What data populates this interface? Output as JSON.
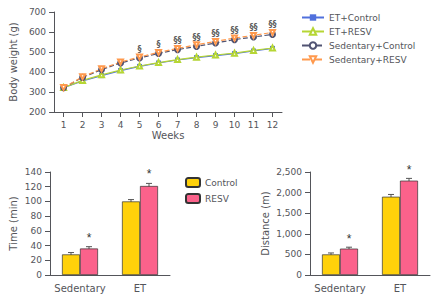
{
  "chart_data": [
    {
      "type": "line",
      "xlabel": "Weeks",
      "ylabel": "Body weight (g)",
      "x": [
        1,
        2,
        3,
        4,
        5,
        6,
        7,
        8,
        9,
        10,
        11,
        12
      ],
      "xlim": [
        0.5,
        12.5
      ],
      "xticks": [
        1,
        2,
        3,
        4,
        5,
        6,
        7,
        8,
        9,
        10,
        11,
        12
      ],
      "ylim": [
        200,
        700
      ],
      "yticks": [
        200,
        300,
        400,
        500,
        600,
        700
      ],
      "grid": false,
      "legend": "right",
      "series": [
        {
          "name": "ET+Control",
          "values": [
            322,
            355,
            382,
            407,
            428,
            445,
            460,
            472,
            482,
            492,
            505,
            518
          ],
          "marker": "square",
          "line_style": "solid"
        },
        {
          "name": "ET+RESV",
          "values": [
            322,
            358,
            386,
            410,
            430,
            447,
            462,
            474,
            485,
            494,
            508,
            520
          ],
          "marker": "triangle",
          "line_style": "solid"
        },
        {
          "name": "Sedentary+Control",
          "values": [
            322,
            373,
            412,
            445,
            470,
            493,
            512,
            528,
            545,
            562,
            575,
            588
          ],
          "marker": "circle",
          "line_style": "dashed"
        },
        {
          "name": "Sedentary+RESV",
          "values": [
            322,
            376,
            416,
            450,
            475,
            498,
            518,
            536,
            553,
            570,
            583,
            598
          ],
          "marker": "triangle-down",
          "line_style": "dashed"
        }
      ],
      "annotations": [
        {
          "text": "§",
          "x": 5,
          "y": 493
        },
        {
          "text": "§",
          "x": 6,
          "y": 516
        },
        {
          "text": "§§",
          "x": 7,
          "y": 536
        },
        {
          "text": "§§",
          "x": 8,
          "y": 554
        },
        {
          "text": "§§",
          "x": 9,
          "y": 571
        },
        {
          "text": "§§",
          "x": 10,
          "y": 588
        },
        {
          "text": "§§",
          "x": 11,
          "y": 601
        },
        {
          "text": "§§",
          "x": 12,
          "y": 616
        }
      ]
    },
    {
      "type": "bar",
      "ylabel": "Time (min)",
      "categories": [
        "Sedentary",
        "ET"
      ],
      "ylim": [
        0,
        140
      ],
      "yticks": [
        0,
        20,
        40,
        60,
        80,
        100,
        120,
        140
      ],
      "grid": false,
      "legend": "right",
      "series": [
        {
          "name": "Control",
          "values": [
            28,
            100
          ],
          "errors": [
            2.5,
            2.5
          ]
        },
        {
          "name": "RESV",
          "values": [
            36,
            121
          ],
          "errors": [
            2.5,
            3.5
          ]
        }
      ],
      "annotations": [
        {
          "text": "*",
          "x": "Sedentary",
          "series": "RESV",
          "y": 42.5
        },
        {
          "text": "*",
          "x": "ET",
          "series": "RESV",
          "y": 128.5
        }
      ]
    },
    {
      "type": "bar",
      "ylabel": "Distance (m)",
      "categories": [
        "Sedentary",
        "ET"
      ],
      "ylim": [
        0,
        2500
      ],
      "yticks": [
        0,
        500,
        1000,
        1500,
        2000,
        2500
      ],
      "grid": false,
      "series": [
        {
          "name": "Control",
          "values": [
            500,
            1900
          ],
          "errors": [
            35,
            55
          ]
        },
        {
          "name": "RESV",
          "values": [
            640,
            2290
          ],
          "errors": [
            35,
            55
          ]
        }
      ],
      "annotations": [
        {
          "text": "*",
          "x": "Sedentary",
          "series": "RESV",
          "y": 725
        },
        {
          "text": "*",
          "x": "ET",
          "series": "RESV",
          "y": 2395
        }
      ]
    }
  ]
}
